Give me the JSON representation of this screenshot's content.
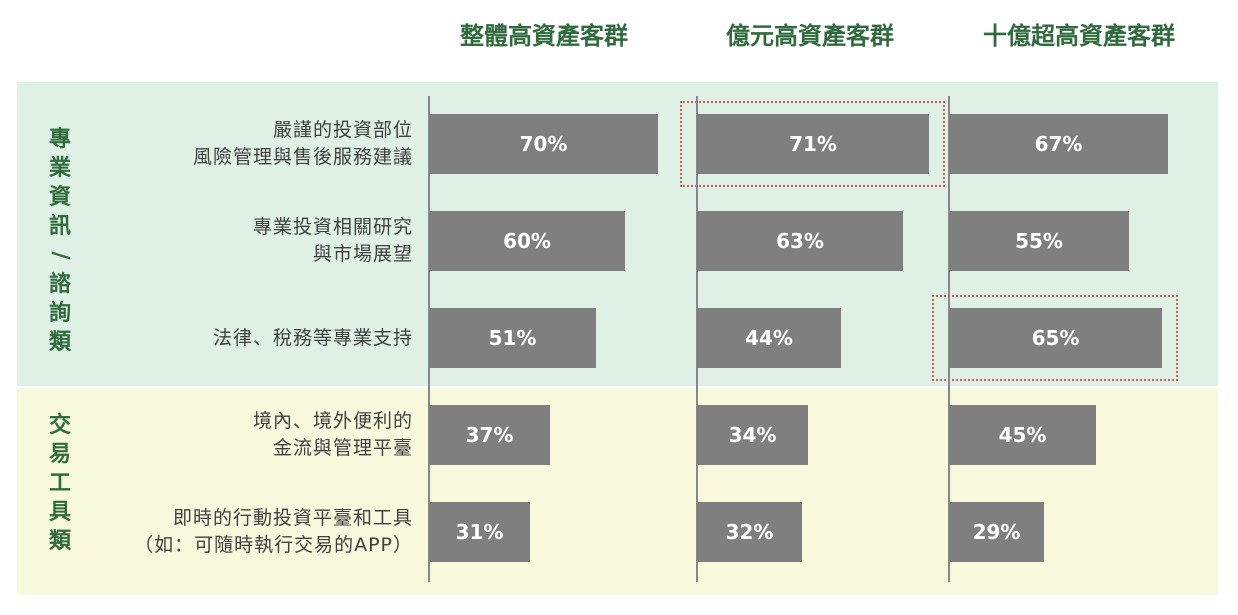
{
  "headers": [
    "整體高資產客群",
    "億元高資產客群",
    "十億超高資產客群"
  ],
  "categories": [
    {
      "title": "專業資訊/諮詢類",
      "rows": [
        0,
        1,
        2
      ]
    },
    {
      "title": "交易工具類",
      "rows": [
        3,
        4
      ]
    }
  ],
  "rows": [
    {
      "label_lines": [
        "嚴謹的投資部位",
        "風險管理與售後服務建議"
      ]
    },
    {
      "label_lines": [
        "專業投資相關研究",
        "與市場展望"
      ]
    },
    {
      "label_lines": [
        "法律、稅務等專業支持"
      ]
    },
    {
      "label_lines": [
        "境內、境外便利的",
        "金流與管理平臺"
      ]
    },
    {
      "label_lines": [
        "即時的行動投資平臺和工具",
        "（如：可隨時執行交易的APP）"
      ]
    }
  ],
  "highlights": [
    {
      "series": 1,
      "row": 0
    },
    {
      "series": 2,
      "row": 2
    }
  ],
  "chart_data": {
    "type": "bar",
    "orientation": "horizontal",
    "categories": [
      "嚴謹的投資部位風險管理與售後服務建議",
      "專業投資相關研究與市場展望",
      "法律、稅務等專業支持",
      "境內、境外便利的金流與管理平臺",
      "即時的行動投資平臺和工具（如：可隨時執行交易的APP）"
    ],
    "series": [
      {
        "name": "整體高資產客群",
        "values": [
          70,
          60,
          51,
          37,
          31
        ]
      },
      {
        "name": "億元高資產客群",
        "values": [
          71,
          63,
          44,
          34,
          32
        ]
      },
      {
        "name": "十億超高資產客群",
        "values": [
          67,
          55,
          65,
          45,
          29
        ]
      }
    ],
    "value_suffix": "%",
    "xlim": [
      0,
      100
    ]
  },
  "colors": {
    "bar": "#7f7f7f",
    "header": "#2f6b3c",
    "band_pro": "#dff0e4",
    "band_tx": "#f8f8dc",
    "highlight": "#d25a6a"
  }
}
